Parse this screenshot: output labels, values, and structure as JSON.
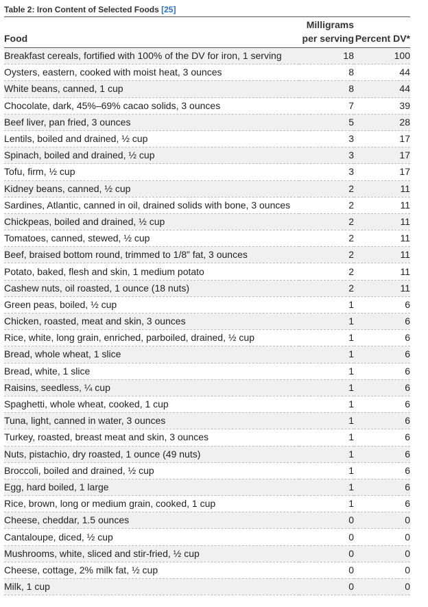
{
  "table": {
    "caption": "Table 2: Iron Content of Selected Foods",
    "reference": "[25]",
    "headers": {
      "food": "Food",
      "mg_line1": "Milligrams",
      "mg_line2": "per serving",
      "dv": "Percent DV*"
    },
    "rows": [
      {
        "food": "Breakfast cereals, fortified with 100% of the DV for iron, 1 serving",
        "mg": "18",
        "dv": "100"
      },
      {
        "food": "Oysters, eastern, cooked with moist heat, 3 ounces",
        "mg": "8",
        "dv": "44"
      },
      {
        "food": "White beans, canned, 1 cup",
        "mg": "8",
        "dv": "44"
      },
      {
        "food": "Chocolate, dark, 45%–69% cacao solids, 3 ounces",
        "mg": "7",
        "dv": "39"
      },
      {
        "food": "Beef liver, pan fried, 3 ounces",
        "mg": "5",
        "dv": "28"
      },
      {
        "food": "Lentils, boiled and drained, ½ cup",
        "mg": "3",
        "dv": "17"
      },
      {
        "food": "Spinach, boiled and drained, ½ cup",
        "mg": "3",
        "dv": "17"
      },
      {
        "food": "Tofu, firm, ½ cup",
        "mg": "3",
        "dv": "17"
      },
      {
        "food": "Kidney beans, canned, ½ cup",
        "mg": "2",
        "dv": "11"
      },
      {
        "food": "Sardines, Atlantic, canned in oil, drained solids with bone, 3 ounces",
        "mg": "2",
        "dv": "11"
      },
      {
        "food": "Chickpeas, boiled and drained, ½ cup",
        "mg": "2",
        "dv": "11"
      },
      {
        "food": "Tomatoes, canned, stewed, ½ cup",
        "mg": "2",
        "dv": "11"
      },
      {
        "food": "Beef, braised bottom round, trimmed to 1/8” fat, 3 ounces",
        "mg": "2",
        "dv": "11"
      },
      {
        "food": "Potato, baked, flesh and skin, 1 medium potato",
        "mg": "2",
        "dv": "11"
      },
      {
        "food": "Cashew nuts, oil roasted, 1 ounce (18 nuts)",
        "mg": "2",
        "dv": "11"
      },
      {
        "food": "Green peas, boiled, ½ cup",
        "mg": "1",
        "dv": "6"
      },
      {
        "food": "Chicken, roasted, meat and skin, 3 ounces",
        "mg": "1",
        "dv": "6"
      },
      {
        "food": "Rice, white, long grain, enriched, parboiled, drained, ½ cup",
        "mg": "1",
        "dv": "6"
      },
      {
        "food": "Bread, whole wheat, 1 slice",
        "mg": "1",
        "dv": "6"
      },
      {
        "food": "Bread, white, 1 slice",
        "mg": "1",
        "dv": "6"
      },
      {
        "food": "Raisins, seedless, ¼ cup",
        "mg": "1",
        "dv": "6"
      },
      {
        "food": "Spaghetti, whole wheat, cooked, 1 cup",
        "mg": "1",
        "dv": "6"
      },
      {
        "food": "Tuna, light, canned in water, 3 ounces",
        "mg": "1",
        "dv": "6"
      },
      {
        "food": "Turkey, roasted, breast meat and skin, 3 ounces",
        "mg": "1",
        "dv": "6"
      },
      {
        "food": "Nuts, pistachio, dry roasted, 1 ounce (49 nuts)",
        "mg": "1",
        "dv": "6"
      },
      {
        "food": "Broccoli, boiled and drained, ½ cup",
        "mg": "1",
        "dv": "6"
      },
      {
        "food": "Egg, hard boiled, 1 large",
        "mg": "1",
        "dv": "6"
      },
      {
        "food": "Rice, brown, long or medium grain, cooked, 1 cup",
        "mg": "1",
        "dv": "6"
      },
      {
        "food": "Cheese, cheddar, 1.5 ounces",
        "mg": "0",
        "dv": "0"
      },
      {
        "food": "Cantaloupe, diced, ½ cup",
        "mg": "0",
        "dv": "0"
      },
      {
        "food": "Mushrooms, white, sliced and stir-fried, ½ cup",
        "mg": "0",
        "dv": "0"
      },
      {
        "food": "Cheese, cottage, 2% milk fat, ½ cup",
        "mg": "0",
        "dv": "0"
      },
      {
        "food": "Milk, 1 cup",
        "mg": "0",
        "dv": "0"
      }
    ]
  },
  "colors": {
    "link": "#2a6ebb",
    "stripe": "#f0f0f0",
    "text": "#222222"
  }
}
